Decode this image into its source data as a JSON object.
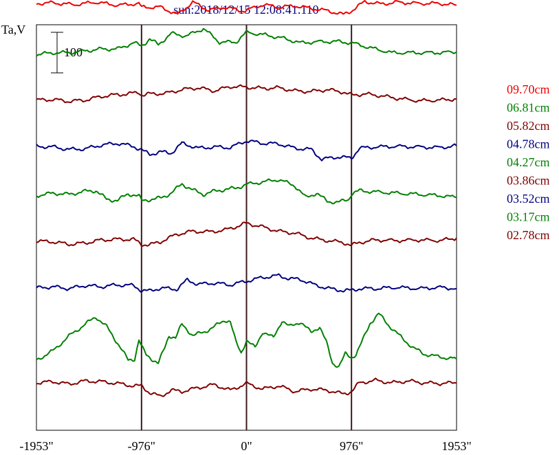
{
  "chart_data": {
    "type": "line",
    "title": "sun:2018/12/15 12:08:41.110",
    "ylabel": "Ta,V",
    "scale_bar_label": "100",
    "xlim": [
      -1953,
      1953
    ],
    "x_ticks": [
      {
        "value": -1953,
        "label": "-1953\""
      },
      {
        "value": -976,
        "label": "-976\""
      },
      {
        "value": 0,
        "label": "0\""
      },
      {
        "value": 976,
        "label": "976\""
      },
      {
        "value": 1953,
        "label": "1953\""
      }
    ],
    "vertical_lines": [
      -976,
      0,
      976
    ],
    "legend_position": "right",
    "series": [
      {
        "name": "09.70cm",
        "color": "#ee0000",
        "offset": 9,
        "points": [
          [
            -1953,
            0
          ],
          [
            -1800,
            1
          ],
          [
            -1600,
            -2
          ],
          [
            -1400,
            2
          ],
          [
            -1200,
            -3
          ],
          [
            -1000,
            0
          ],
          [
            -976,
            -6
          ],
          [
            -800,
            -6
          ],
          [
            -640,
            -18
          ],
          [
            -500,
            2
          ],
          [
            -350,
            -11
          ],
          [
            -200,
            -6
          ],
          [
            -50,
            -12
          ],
          [
            0,
            -11
          ],
          [
            150,
            -2
          ],
          [
            300,
            -6
          ],
          [
            450,
            -4
          ],
          [
            600,
            -8
          ],
          [
            760,
            -12
          ],
          [
            900,
            -18
          ],
          [
            976,
            -12
          ],
          [
            1100,
            3
          ],
          [
            1250,
            -1
          ],
          [
            1400,
            2
          ],
          [
            1600,
            0
          ],
          [
            1800,
            0
          ],
          [
            1953,
            -3
          ]
        ]
      },
      {
        "name": "06.81cm",
        "color": "#008000",
        "offset": 8,
        "points": [
          [
            -1953,
            -6
          ],
          [
            -1800,
            -3
          ],
          [
            -1650,
            -3
          ],
          [
            -1500,
            0
          ],
          [
            -1350,
            3
          ],
          [
            -1200,
            3
          ],
          [
            -1050,
            13
          ],
          [
            -976,
            8
          ],
          [
            -900,
            19
          ],
          [
            -820,
            10
          ],
          [
            -700,
            28
          ],
          [
            -560,
            24
          ],
          [
            -400,
            36
          ],
          [
            -250,
            14
          ],
          [
            -100,
            14
          ],
          [
            0,
            30
          ],
          [
            200,
            25
          ],
          [
            350,
            20
          ],
          [
            500,
            13
          ],
          [
            700,
            15
          ],
          [
            850,
            15
          ],
          [
            976,
            13
          ],
          [
            1150,
            5
          ],
          [
            1350,
            -3
          ],
          [
            1550,
            -3
          ],
          [
            1750,
            -3
          ],
          [
            1953,
            -2
          ]
        ]
      },
      {
        "name": "05.82cm",
        "color": "#800000",
        "offset": 7,
        "points": [
          [
            -1953,
            -3
          ],
          [
            -1800,
            -2
          ],
          [
            -1650,
            -5
          ],
          [
            -1500,
            -3
          ],
          [
            -1350,
            3
          ],
          [
            -1200,
            6
          ],
          [
            -1100,
            7
          ],
          [
            -1000,
            10
          ],
          [
            -976,
            5
          ],
          [
            -900,
            7
          ],
          [
            -750,
            8
          ],
          [
            -600,
            14
          ],
          [
            -450,
            17
          ],
          [
            -300,
            12
          ],
          [
            -150,
            19
          ],
          [
            0,
            18
          ],
          [
            150,
            16
          ],
          [
            300,
            17
          ],
          [
            450,
            12
          ],
          [
            600,
            11
          ],
          [
            750,
            14
          ],
          [
            900,
            10
          ],
          [
            976,
            5
          ],
          [
            1100,
            7
          ],
          [
            1250,
            4
          ],
          [
            1400,
            0
          ],
          [
            1600,
            -4
          ],
          [
            1800,
            -3
          ],
          [
            1953,
            -1
          ]
        ]
      },
      {
        "name": "04.78cm",
        "color": "#000080",
        "offset": 6,
        "points": [
          [
            -1953,
            -1
          ],
          [
            -1800,
            -2
          ],
          [
            -1650,
            -6
          ],
          [
            -1500,
            -5
          ],
          [
            -1350,
            1
          ],
          [
            -1200,
            4
          ],
          [
            -1050,
            -1
          ],
          [
            -976,
            -7
          ],
          [
            -900,
            -14
          ],
          [
            -800,
            -10
          ],
          [
            -700,
            -12
          ],
          [
            -600,
            4
          ],
          [
            -450,
            -4
          ],
          [
            -300,
            -2
          ],
          [
            -150,
            -3
          ],
          [
            0,
            8
          ],
          [
            150,
            4
          ],
          [
            300,
            3
          ],
          [
            450,
            -4
          ],
          [
            600,
            -6
          ],
          [
            700,
            -22
          ],
          [
            850,
            -18
          ],
          [
            976,
            -20
          ],
          [
            1050,
            -4
          ],
          [
            1200,
            -2
          ],
          [
            1400,
            -1
          ],
          [
            1600,
            -2
          ],
          [
            1800,
            -3
          ],
          [
            1953,
            0
          ]
        ]
      },
      {
        "name": "04.27cm",
        "color": "#008000",
        "offset": 5,
        "points": [
          [
            -1953,
            -4
          ],
          [
            -1800,
            0
          ],
          [
            -1650,
            -2
          ],
          [
            -1500,
            3
          ],
          [
            -1400,
            4
          ],
          [
            -1300,
            -10
          ],
          [
            -1200,
            -12
          ],
          [
            -1100,
            -1
          ],
          [
            -1000,
            -5
          ],
          [
            -976,
            -12
          ],
          [
            -880,
            -10
          ],
          [
            -800,
            -8
          ],
          [
            -700,
            0
          ],
          [
            -600,
            15
          ],
          [
            -500,
            5
          ],
          [
            -400,
            -2
          ],
          [
            -300,
            3
          ],
          [
            -200,
            6
          ],
          [
            -100,
            8
          ],
          [
            0,
            14
          ],
          [
            150,
            18
          ],
          [
            300,
            22
          ],
          [
            450,
            12
          ],
          [
            550,
            -7
          ],
          [
            650,
            0
          ],
          [
            750,
            -13
          ],
          [
            850,
            -15
          ],
          [
            950,
            -10
          ],
          [
            976,
            -1
          ],
          [
            1050,
            4
          ],
          [
            1200,
            2
          ],
          [
            1400,
            0
          ],
          [
            1600,
            -2
          ],
          [
            1800,
            -4
          ],
          [
            1953,
            -7
          ]
        ]
      },
      {
        "name": "03.86cm",
        "color": "#800000",
        "offset": 4,
        "points": [
          [
            -1953,
            -1
          ],
          [
            -1800,
            -2
          ],
          [
            -1650,
            -6
          ],
          [
            -1500,
            -4
          ],
          [
            -1350,
            1
          ],
          [
            -1200,
            2
          ],
          [
            -1050,
            2
          ],
          [
            -976,
            -6
          ],
          [
            -900,
            -7
          ],
          [
            -800,
            -2
          ],
          [
            -650,
            10
          ],
          [
            -500,
            15
          ],
          [
            -350,
            14
          ],
          [
            -200,
            17
          ],
          [
            -50,
            25
          ],
          [
            0,
            28
          ],
          [
            150,
            22
          ],
          [
            300,
            15
          ],
          [
            450,
            12
          ],
          [
            600,
            4
          ],
          [
            750,
            0
          ],
          [
            900,
            -3
          ],
          [
            976,
            -8
          ],
          [
            1050,
            -3
          ],
          [
            1200,
            1
          ],
          [
            1400,
            0
          ],
          [
            1600,
            1
          ],
          [
            1800,
            0
          ],
          [
            1953,
            4
          ]
        ]
      },
      {
        "name": "03.52cm",
        "color": "#000080",
        "offset": 3,
        "points": [
          [
            -1953,
            0
          ],
          [
            -1800,
            2
          ],
          [
            -1650,
            -1
          ],
          [
            -1500,
            4
          ],
          [
            -1350,
            2
          ],
          [
            -1200,
            5
          ],
          [
            -1050,
            4
          ],
          [
            -976,
            -4
          ],
          [
            -900,
            -5
          ],
          [
            -800,
            0
          ],
          [
            -650,
            -2
          ],
          [
            -550,
            13
          ],
          [
            -450,
            6
          ],
          [
            -300,
            8
          ],
          [
            -150,
            5
          ],
          [
            0,
            11
          ],
          [
            150,
            17
          ],
          [
            300,
            20
          ],
          [
            400,
            15
          ],
          [
            500,
            14
          ],
          [
            650,
            4
          ],
          [
            800,
            -2
          ],
          [
            900,
            -4
          ],
          [
            976,
            -4
          ],
          [
            1050,
            -1
          ],
          [
            1200,
            -1
          ],
          [
            1400,
            1
          ],
          [
            1600,
            -1
          ],
          [
            1800,
            1
          ],
          [
            1953,
            -1
          ]
        ]
      },
      {
        "name": "03.17cm",
        "color": "#008000",
        "offset": 2,
        "points": [
          [
            -1953,
            -40
          ],
          [
            -1800,
            -25
          ],
          [
            -1650,
            -1
          ],
          [
            -1500,
            18
          ],
          [
            -1400,
            30
          ],
          [
            -1300,
            14
          ],
          [
            -1200,
            -12
          ],
          [
            -1100,
            -40
          ],
          [
            -1040,
            -38
          ],
          [
            -1000,
            -7
          ],
          [
            -976,
            -18
          ],
          [
            -930,
            -32
          ],
          [
            -880,
            -38
          ],
          [
            -820,
            -45
          ],
          [
            -760,
            -20
          ],
          [
            -720,
            0
          ],
          [
            -660,
            -4
          ],
          [
            -600,
            18
          ],
          [
            -500,
            0
          ],
          [
            -400,
            5
          ],
          [
            -300,
            14
          ],
          [
            -200,
            25
          ],
          [
            -150,
            22
          ],
          [
            -100,
            -10
          ],
          [
            -50,
            -28
          ],
          [
            0,
            -8
          ],
          [
            80,
            -20
          ],
          [
            150,
            6
          ],
          [
            250,
            -4
          ],
          [
            330,
            24
          ],
          [
            400,
            14
          ],
          [
            500,
            22
          ],
          [
            600,
            5
          ],
          [
            680,
            14
          ],
          [
            740,
            -10
          ],
          [
            800,
            -45
          ],
          [
            860,
            -50
          ],
          [
            920,
            -30
          ],
          [
            976,
            -36
          ],
          [
            1020,
            -30
          ],
          [
            1080,
            -8
          ],
          [
            1150,
            20
          ],
          [
            1230,
            35
          ],
          [
            1330,
            15
          ],
          [
            1450,
            -5
          ],
          [
            1550,
            -20
          ],
          [
            1650,
            -30
          ],
          [
            1800,
            -35
          ],
          [
            1953,
            -38
          ]
        ]
      },
      {
        "name": "02.78cm",
        "color": "#800000",
        "offset": 1,
        "points": [
          [
            -1953,
            0
          ],
          [
            -1800,
            2
          ],
          [
            -1650,
            -2
          ],
          [
            -1500,
            3
          ],
          [
            -1350,
            2
          ],
          [
            -1200,
            -1
          ],
          [
            -1050,
            -5
          ],
          [
            -976,
            -5
          ],
          [
            -900,
            -16
          ],
          [
            -800,
            -22
          ],
          [
            -700,
            -12
          ],
          [
            -600,
            -14
          ],
          [
            -450,
            -8
          ],
          [
            -300,
            -3
          ],
          [
            -150,
            -12
          ],
          [
            0,
            -1
          ],
          [
            150,
            -10
          ],
          [
            300,
            -5
          ],
          [
            450,
            -14
          ],
          [
            600,
            -10
          ],
          [
            750,
            -12
          ],
          [
            900,
            -18
          ],
          [
            976,
            -14
          ],
          [
            1050,
            0
          ],
          [
            1200,
            4
          ],
          [
            1350,
            0
          ],
          [
            1500,
            3
          ],
          [
            1650,
            0
          ],
          [
            1800,
            -1
          ],
          [
            1953,
            0
          ]
        ]
      }
    ]
  }
}
